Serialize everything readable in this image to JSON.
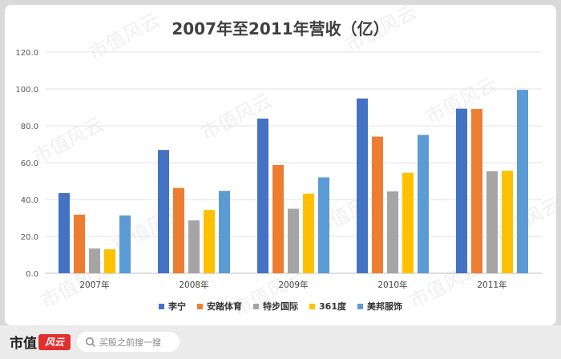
{
  "title": "2007年至2011年营收（亿）",
  "chart_data": {
    "type": "bar",
    "title": "2007年至2011年营收（亿）",
    "categories": [
      "2007年",
      "2008年",
      "2009年",
      "2010年",
      "2011年"
    ],
    "series": [
      {
        "name": "李宁",
        "color": "#4472c4",
        "values": [
          43.5,
          66.9,
          83.9,
          94.8,
          89.3
        ]
      },
      {
        "name": "安踏体育",
        "color": "#ed7d31",
        "values": [
          31.8,
          46.3,
          58.7,
          74.1,
          89.1
        ]
      },
      {
        "name": "特步国际",
        "color": "#a5a5a5",
        "values": [
          13.4,
          28.7,
          35.0,
          44.5,
          55.4
        ]
      },
      {
        "name": "361度",
        "color": "#ffc000",
        "values": [
          13.0,
          34.3,
          43.2,
          54.5,
          55.6
        ]
      },
      {
        "name": "美邦服饰",
        "color": "#5b9bd5",
        "values": [
          31.4,
          44.7,
          52.0,
          75.1,
          99.5
        ]
      }
    ],
    "ylim": [
      0,
      120
    ],
    "yticks": [
      "0.0",
      "20.0",
      "40.0",
      "60.0",
      "80.0",
      "100.0",
      "120.0"
    ],
    "grid": true,
    "legend": "bottom"
  },
  "watermark_text": "市值风云",
  "footer": {
    "brand_text": "市值",
    "brand_logo_text": "风云",
    "search_placeholder": "买股之前搜一搜"
  }
}
